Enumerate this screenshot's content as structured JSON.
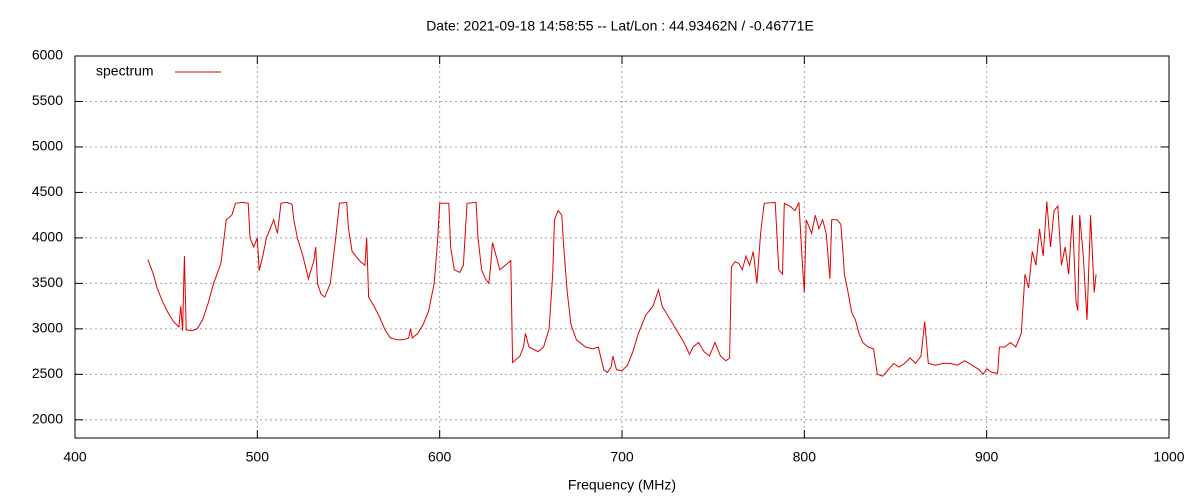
{
  "chart_data": {
    "type": "line",
    "title": "Date: 2021-09-18 14:58:55  --  Lat/Lon : 44.93462N / -0.46771E",
    "x_label": "Frequency (MHz)",
    "xlim": [
      400,
      1000
    ],
    "xticks": [
      400,
      500,
      600,
      700,
      800,
      900,
      1000
    ],
    "ylim": [
      1800,
      6000
    ],
    "yticks": [
      2000,
      2500,
      3000,
      3500,
      4000,
      4500,
      5000,
      5500,
      6000
    ],
    "grid": true,
    "legend": "top-left",
    "x": [
      440,
      443,
      445,
      448,
      451,
      454,
      457,
      458,
      459,
      460,
      461,
      464,
      467,
      470,
      473,
      476,
      480,
      483,
      486,
      488,
      492,
      495,
      496,
      498,
      500,
      501,
      503,
      505,
      507,
      509,
      511,
      513,
      516,
      519,
      520,
      522,
      525,
      528,
      531,
      532,
      533,
      535,
      537,
      540,
      543,
      545,
      549,
      550,
      552,
      556,
      559,
      560,
      561,
      564,
      567,
      570,
      573,
      577,
      580,
      583,
      584,
      585,
      588,
      591,
      594,
      597,
      599,
      600,
      605,
      606,
      608,
      611,
      613,
      615,
      620,
      621,
      623,
      625,
      627,
      628,
      629,
      631,
      633,
      636,
      639,
      640,
      644,
      646,
      647,
      649,
      654,
      657,
      660,
      662,
      663,
      665,
      667,
      668,
      670,
      672,
      675,
      680,
      684,
      687,
      690,
      692,
      694,
      695,
      697,
      700,
      703,
      706,
      709,
      713,
      717,
      720,
      722,
      725,
      728,
      731,
      734,
      737,
      739,
      742,
      745,
      748,
      751,
      754,
      757,
      759,
      760,
      762,
      764,
      766,
      768,
      770,
      772,
      774,
      776,
      778,
      784,
      786,
      788,
      789,
      792,
      795,
      797,
      799,
      800,
      801,
      804,
      806,
      808,
      810,
      812,
      814,
      815,
      818,
      820,
      821,
      822,
      824,
      826,
      828,
      830,
      832,
      835,
      838,
      840,
      843,
      846,
      849,
      852,
      855,
      858,
      861,
      864,
      866,
      868,
      872,
      876,
      880,
      884,
      888,
      892,
      896,
      898,
      900,
      903,
      906,
      907,
      910,
      913,
      916,
      919,
      921,
      923,
      925,
      927,
      929,
      931,
      933,
      935,
      937,
      939,
      941,
      943,
      945,
      947,
      949,
      950,
      951,
      953,
      955,
      957,
      959,
      960
    ],
    "series": [
      {
        "name": "spectrum",
        "color": "#e00000",
        "values": [
          3760,
          3600,
          3450,
          3300,
          3180,
          3080,
          3020,
          3250,
          2980,
          3800,
          2990,
          2980,
          3000,
          3100,
          3280,
          3500,
          3720,
          4200,
          4250,
          4380,
          4390,
          4380,
          4000,
          3900,
          4000,
          3640,
          3800,
          4000,
          4100,
          4200,
          4050,
          4380,
          4390,
          4370,
          4200,
          4000,
          3800,
          3550,
          3750,
          3900,
          3500,
          3380,
          3350,
          3500,
          4000,
          4380,
          4390,
          4100,
          3850,
          3750,
          3700,
          4000,
          3350,
          3250,
          3130,
          2990,
          2900,
          2880,
          2880,
          2900,
          3000,
          2900,
          2950,
          3050,
          3200,
          3500,
          4000,
          4380,
          4380,
          3900,
          3650,
          3620,
          3700,
          4380,
          4390,
          4000,
          3650,
          3550,
          3500,
          3700,
          3950,
          3800,
          3650,
          3700,
          3750,
          2630,
          2700,
          2800,
          2950,
          2800,
          2750,
          2800,
          3000,
          3600,
          4200,
          4300,
          4250,
          3900,
          3400,
          3050,
          2880,
          2800,
          2780,
          2800,
          2550,
          2520,
          2580,
          2700,
          2550,
          2540,
          2600,
          2750,
          2950,
          3150,
          3250,
          3430,
          3250,
          3150,
          3050,
          2950,
          2850,
          2720,
          2800,
          2850,
          2750,
          2700,
          2850,
          2700,
          2650,
          2680,
          3680,
          3740,
          3720,
          3650,
          3800,
          3700,
          3850,
          3500,
          4050,
          4380,
          4390,
          3650,
          3600,
          4380,
          4350,
          4300,
          4390,
          3700,
          3400,
          4200,
          4050,
          4250,
          4100,
          4200,
          4050,
          3550,
          4200,
          4200,
          4150,
          3900,
          3600,
          3400,
          3180,
          3100,
          2950,
          2850,
          2800,
          2780,
          2500,
          2480,
          2550,
          2620,
          2580,
          2620,
          2680,
          2620,
          2700,
          3080,
          2620,
          2600,
          2620,
          2620,
          2600,
          2650,
          2600,
          2550,
          2500,
          2560,
          2520,
          2510,
          2800,
          2800,
          2850,
          2800,
          2950,
          3600,
          3450,
          3850,
          3700,
          4100,
          3800,
          4400,
          3900,
          4300,
          4350,
          3700,
          3900,
          3600,
          4250,
          3300,
          3200,
          4250,
          3800,
          3100,
          4250,
          3400,
          3600
        ]
      }
    ]
  }
}
